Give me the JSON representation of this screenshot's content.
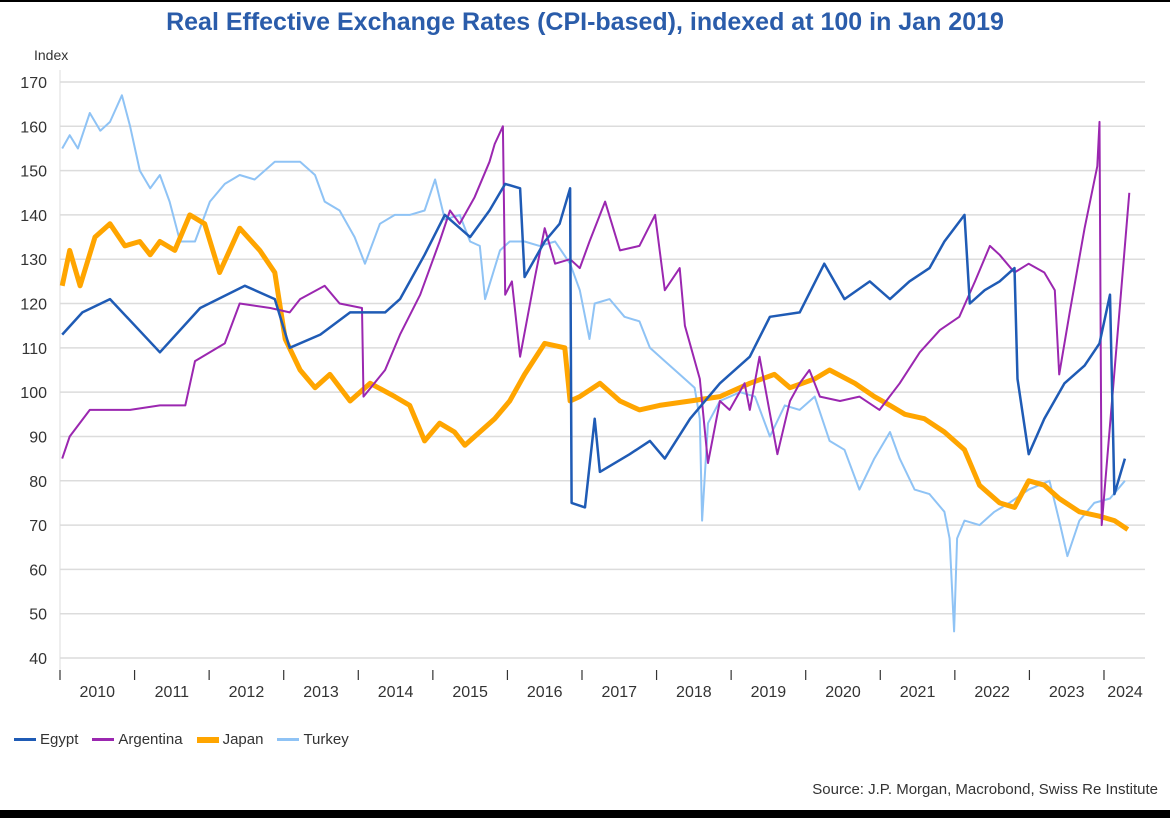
{
  "chart_data": {
    "type": "line",
    "title": "Real Effective Exchange Rates (CPI-based), indexed at 100 in Jan 2019",
    "ylabel": "Index",
    "xlabel": "",
    "ylim": [
      40,
      170
    ],
    "yticks": [
      40,
      50,
      60,
      70,
      80,
      90,
      100,
      110,
      120,
      130,
      140,
      150,
      160,
      170
    ],
    "xlim": [
      2010,
      2024.55
    ],
    "xtick_labels": [
      "2010",
      "2011",
      "2012",
      "2013",
      "2014",
      "2015",
      "2016",
      "2017",
      "2018",
      "2019",
      "2020",
      "2021",
      "2022",
      "2023",
      "2024"
    ],
    "grid": true,
    "legend_placement": "bottom-left",
    "source": "Source: J.P. Morgan, Macrobond, Swiss Re Institute",
    "series": [
      {
        "name": "Egypt",
        "color": "#1f5bb5",
        "width": 2.5,
        "points": [
          [
            2010.03,
            113
          ],
          [
            2010.3,
            118
          ],
          [
            2010.67,
            121
          ],
          [
            2011.34,
            109
          ],
          [
            2011.88,
            119
          ],
          [
            2012.48,
            124
          ],
          [
            2012.88,
            121
          ],
          [
            2013.08,
            110
          ],
          [
            2013.49,
            113
          ],
          [
            2013.89,
            118
          ],
          [
            2014.36,
            118
          ],
          [
            2014.56,
            121
          ],
          [
            2014.89,
            131
          ],
          [
            2015.16,
            140
          ],
          [
            2015.5,
            135
          ],
          [
            2015.76,
            141
          ],
          [
            2015.97,
            147
          ],
          [
            2016.17,
            146
          ],
          [
            2016.23,
            126
          ],
          [
            2016.5,
            134
          ],
          [
            2016.7,
            138
          ],
          [
            2016.84,
            146
          ],
          [
            2016.86,
            75
          ],
          [
            2017.04,
            74
          ],
          [
            2017.17,
            94
          ],
          [
            2017.24,
            82
          ],
          [
            2017.64,
            86
          ],
          [
            2017.91,
            89
          ],
          [
            2018.11,
            85
          ],
          [
            2018.45,
            94
          ],
          [
            2018.85,
            102
          ],
          [
            2019.25,
            108
          ],
          [
            2019.52,
            117
          ],
          [
            2019.92,
            118
          ],
          [
            2020.25,
            129
          ],
          [
            2020.52,
            121
          ],
          [
            2020.86,
            125
          ],
          [
            2021.13,
            121
          ],
          [
            2021.39,
            125
          ],
          [
            2021.66,
            128
          ],
          [
            2021.86,
            134
          ],
          [
            2022.13,
            140
          ],
          [
            2022.2,
            120
          ],
          [
            2022.4,
            123
          ],
          [
            2022.6,
            125
          ],
          [
            2022.8,
            128
          ],
          [
            2022.84,
            103
          ],
          [
            2022.99,
            86
          ],
          [
            2023.2,
            94
          ],
          [
            2023.47,
            102
          ],
          [
            2023.74,
            106
          ],
          [
            2023.94,
            111
          ],
          [
            2024.08,
            122
          ],
          [
            2024.14,
            77
          ],
          [
            2024.28,
            85
          ]
        ]
      },
      {
        "name": "Argentina",
        "color": "#9b27b0",
        "width": 2,
        "points": [
          [
            2010.03,
            85
          ],
          [
            2010.13,
            90
          ],
          [
            2010.4,
            96
          ],
          [
            2010.94,
            96
          ],
          [
            2011.34,
            97
          ],
          [
            2011.68,
            97
          ],
          [
            2011.81,
            107
          ],
          [
            2012.21,
            111
          ],
          [
            2012.41,
            120
          ],
          [
            2012.82,
            119
          ],
          [
            2013.08,
            118
          ],
          [
            2013.22,
            121
          ],
          [
            2013.55,
            124
          ],
          [
            2013.75,
            120
          ],
          [
            2014.05,
            119
          ],
          [
            2014.07,
            99
          ],
          [
            2014.36,
            105
          ],
          [
            2014.56,
            113
          ],
          [
            2014.83,
            122
          ],
          [
            2015.09,
            134
          ],
          [
            2015.23,
            141
          ],
          [
            2015.36,
            138
          ],
          [
            2015.56,
            144
          ],
          [
            2015.76,
            152
          ],
          [
            2015.83,
            156
          ],
          [
            2015.94,
            160
          ],
          [
            2015.97,
            122
          ],
          [
            2016.06,
            125
          ],
          [
            2016.17,
            108
          ],
          [
            2016.37,
            126
          ],
          [
            2016.5,
            137
          ],
          [
            2016.64,
            129
          ],
          [
            2016.84,
            130
          ],
          [
            2016.97,
            128
          ],
          [
            2017.1,
            134
          ],
          [
            2017.31,
            143
          ],
          [
            2017.51,
            132
          ],
          [
            2017.77,
            133
          ],
          [
            2017.98,
            140
          ],
          [
            2018.11,
            123
          ],
          [
            2018.31,
            128
          ],
          [
            2018.38,
            115
          ],
          [
            2018.58,
            103
          ],
          [
            2018.69,
            84
          ],
          [
            2018.85,
            98
          ],
          [
            2018.98,
            96
          ],
          [
            2019.18,
            102
          ],
          [
            2019.25,
            96
          ],
          [
            2019.38,
            108
          ],
          [
            2019.62,
            86
          ],
          [
            2019.79,
            98
          ],
          [
            2019.92,
            102
          ],
          [
            2020.05,
            105
          ],
          [
            2020.19,
            99
          ],
          [
            2020.46,
            98
          ],
          [
            2020.72,
            99
          ],
          [
            2020.99,
            96
          ],
          [
            2021.26,
            102
          ],
          [
            2021.53,
            109
          ],
          [
            2021.8,
            114
          ],
          [
            2022.06,
            117
          ],
          [
            2022.27,
            125
          ],
          [
            2022.47,
            133
          ],
          [
            2022.6,
            131
          ],
          [
            2022.8,
            127
          ],
          [
            2022.99,
            129
          ],
          [
            2023.2,
            127
          ],
          [
            2023.34,
            123
          ],
          [
            2023.4,
            104
          ],
          [
            2023.54,
            118
          ],
          [
            2023.74,
            137
          ],
          [
            2023.91,
            151
          ],
          [
            2023.94,
            161
          ],
          [
            2023.97,
            70
          ],
          [
            2024.34,
            145
          ]
        ]
      },
      {
        "name": "Japan",
        "color": "#ffa500",
        "width": 5,
        "points": [
          [
            2010.03,
            124
          ],
          [
            2010.13,
            132
          ],
          [
            2010.27,
            124
          ],
          [
            2010.47,
            135
          ],
          [
            2010.67,
            138
          ],
          [
            2010.87,
            133
          ],
          [
            2011.07,
            134
          ],
          [
            2011.21,
            131
          ],
          [
            2011.34,
            134
          ],
          [
            2011.54,
            132
          ],
          [
            2011.74,
            140
          ],
          [
            2011.94,
            138
          ],
          [
            2012.14,
            127
          ],
          [
            2012.41,
            137
          ],
          [
            2012.68,
            132
          ],
          [
            2012.88,
            127
          ],
          [
            2013.02,
            112
          ],
          [
            2013.22,
            105
          ],
          [
            2013.42,
            101
          ],
          [
            2013.62,
            104
          ],
          [
            2013.89,
            98
          ],
          [
            2014.16,
            102
          ],
          [
            2014.49,
            99
          ],
          [
            2014.69,
            97
          ],
          [
            2014.89,
            89
          ],
          [
            2015.09,
            93
          ],
          [
            2015.29,
            91
          ],
          [
            2015.43,
            88
          ],
          [
            2015.63,
            91
          ],
          [
            2015.83,
            94
          ],
          [
            2016.03,
            98
          ],
          [
            2016.23,
            104
          ],
          [
            2016.5,
            111
          ],
          [
            2016.77,
            110
          ],
          [
            2016.84,
            98
          ],
          [
            2016.97,
            99
          ],
          [
            2017.24,
            102
          ],
          [
            2017.51,
            98
          ],
          [
            2017.77,
            96
          ],
          [
            2018.04,
            97
          ],
          [
            2018.45,
            98
          ],
          [
            2018.85,
            99
          ],
          [
            2019.25,
            102
          ],
          [
            2019.58,
            104
          ],
          [
            2019.79,
            101
          ],
          [
            2020.12,
            103
          ],
          [
            2020.32,
            105
          ],
          [
            2020.66,
            102
          ],
          [
            2020.92,
            99
          ],
          [
            2021.13,
            97
          ],
          [
            2021.33,
            95
          ],
          [
            2021.59,
            94
          ],
          [
            2021.86,
            91
          ],
          [
            2022.13,
            87
          ],
          [
            2022.33,
            79
          ],
          [
            2022.6,
            75
          ],
          [
            2022.8,
            74
          ],
          [
            2022.99,
            80
          ],
          [
            2023.2,
            79
          ],
          [
            2023.4,
            76
          ],
          [
            2023.67,
            73
          ],
          [
            2023.94,
            72
          ],
          [
            2024.14,
            71
          ],
          [
            2024.32,
            69
          ]
        ]
      },
      {
        "name": "Turkey",
        "color": "#8fc3f5",
        "width": 2,
        "points": [
          [
            2010.03,
            155
          ],
          [
            2010.13,
            158
          ],
          [
            2010.24,
            155
          ],
          [
            2010.4,
            163
          ],
          [
            2010.54,
            159
          ],
          [
            2010.67,
            161
          ],
          [
            2010.83,
            167
          ],
          [
            2010.94,
            160
          ],
          [
            2011.07,
            150
          ],
          [
            2011.21,
            146
          ],
          [
            2011.34,
            149
          ],
          [
            2011.47,
            143
          ],
          [
            2011.61,
            134
          ],
          [
            2011.81,
            134
          ],
          [
            2012.01,
            143
          ],
          [
            2012.21,
            147
          ],
          [
            2012.41,
            149
          ],
          [
            2012.61,
            148
          ],
          [
            2012.88,
            152
          ],
          [
            2013.22,
            152
          ],
          [
            2013.42,
            149
          ],
          [
            2013.55,
            143
          ],
          [
            2013.75,
            141
          ],
          [
            2013.95,
            135
          ],
          [
            2014.09,
            129
          ],
          [
            2014.29,
            138
          ],
          [
            2014.49,
            140
          ],
          [
            2014.69,
            140
          ],
          [
            2014.89,
            141
          ],
          [
            2015.03,
            148
          ],
          [
            2015.16,
            139
          ],
          [
            2015.36,
            140
          ],
          [
            2015.5,
            134
          ],
          [
            2015.63,
            133
          ],
          [
            2015.7,
            121
          ],
          [
            2015.9,
            132
          ],
          [
            2016.03,
            134
          ],
          [
            2016.23,
            134
          ],
          [
            2016.43,
            133
          ],
          [
            2016.64,
            134
          ],
          [
            2016.84,
            129
          ],
          [
            2016.97,
            123
          ],
          [
            2017.1,
            112
          ],
          [
            2017.17,
            120
          ],
          [
            2017.37,
            121
          ],
          [
            2017.57,
            117
          ],
          [
            2017.77,
            116
          ],
          [
            2017.91,
            110
          ],
          [
            2018.11,
            107
          ],
          [
            2018.31,
            104
          ],
          [
            2018.51,
            101
          ],
          [
            2018.58,
            94
          ],
          [
            2018.61,
            71
          ],
          [
            2018.69,
            93
          ],
          [
            2018.85,
            98
          ],
          [
            2019.12,
            100
          ],
          [
            2019.32,
            99
          ],
          [
            2019.52,
            90
          ],
          [
            2019.72,
            97
          ],
          [
            2019.92,
            96
          ],
          [
            2020.12,
            99
          ],
          [
            2020.32,
            89
          ],
          [
            2020.52,
            87
          ],
          [
            2020.72,
            78
          ],
          [
            2020.92,
            85
          ],
          [
            2021.13,
            91
          ],
          [
            2021.26,
            85
          ],
          [
            2021.46,
            78
          ],
          [
            2021.66,
            77
          ],
          [
            2021.86,
            73
          ],
          [
            2021.93,
            67
          ],
          [
            2021.99,
            46
          ],
          [
            2022.03,
            67
          ],
          [
            2022.13,
            71
          ],
          [
            2022.33,
            70
          ],
          [
            2022.53,
            73
          ],
          [
            2022.73,
            75
          ],
          [
            2022.99,
            78
          ],
          [
            2023.27,
            80
          ],
          [
            2023.4,
            71
          ],
          [
            2023.51,
            63
          ],
          [
            2023.67,
            71
          ],
          [
            2023.87,
            75
          ],
          [
            2024.08,
            76
          ],
          [
            2024.28,
            80
          ]
        ]
      }
    ]
  }
}
